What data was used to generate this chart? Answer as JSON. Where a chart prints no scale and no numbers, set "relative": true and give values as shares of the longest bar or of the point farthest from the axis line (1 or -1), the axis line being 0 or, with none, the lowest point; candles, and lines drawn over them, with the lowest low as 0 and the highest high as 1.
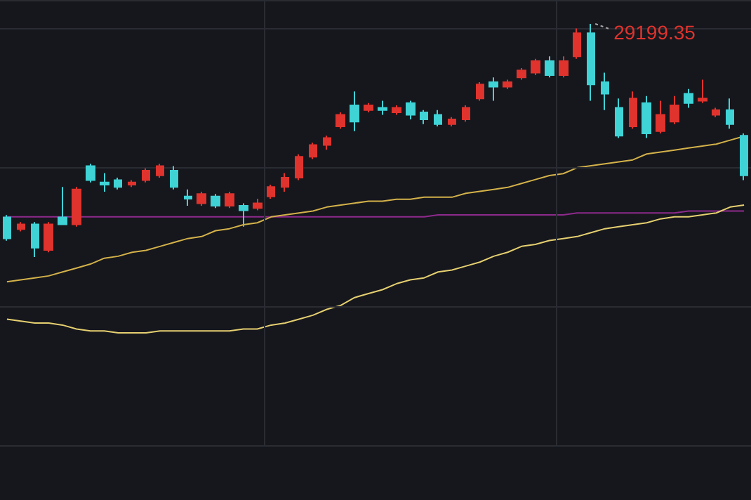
{
  "chart_data": [
    {
      "type": "line",
      "relative": true,
      "categories": [
        null,
        null,
        null,
        null,
        null,
        null,
        null,
        null,
        null,
        null,
        null,
        null,
        null,
        null,
        null,
        null,
        null,
        null,
        null,
        null,
        null,
        null,
        null,
        null,
        null,
        null,
        null,
        null,
        null,
        null,
        null,
        null,
        null,
        null,
        null,
        null,
        null,
        null,
        null,
        null,
        null,
        null,
        null,
        null,
        null,
        null,
        null,
        null,
        null,
        null,
        null,
        null,
        null,
        null
      ],
      "series": [
        {
          "color": "#8e2a8c",
          "values": [
            0.59,
            0.59,
            0.59,
            0.59,
            0.59,
            0.59,
            0.59,
            0.59,
            0.59,
            0.59,
            0.59,
            0.59,
            0.59,
            0.59,
            0.59,
            0.59,
            0.59,
            0.59,
            0.59,
            0.59,
            0.59,
            0.59,
            0.59,
            0.59,
            0.59,
            0.59,
            0.59,
            0.59,
            0.59,
            0.59,
            0.59,
            0.6,
            0.6,
            0.6,
            0.6,
            0.6,
            0.6,
            0.6,
            0.6,
            0.6,
            0.6,
            0.61,
            0.61,
            0.61,
            0.61,
            0.61,
            0.61,
            0.61,
            0.61,
            0.62,
            0.62,
            0.62,
            0.62,
            0.62
          ]
        },
        {
          "color": "#d4b24a",
          "values": [
            0.26,
            0.27,
            0.28,
            0.29,
            0.31,
            0.33,
            0.35,
            0.38,
            0.39,
            0.41,
            0.42,
            0.44,
            0.46,
            0.48,
            0.49,
            0.52,
            0.53,
            0.55,
            0.56,
            0.59,
            0.6,
            0.61,
            0.62,
            0.64,
            0.65,
            0.66,
            0.67,
            0.67,
            0.68,
            0.68,
            0.69,
            0.69,
            0.69,
            0.71,
            0.72,
            0.73,
            0.74,
            0.76,
            0.78,
            0.8,
            0.81,
            0.84,
            0.85,
            0.86,
            0.87,
            0.88,
            0.91,
            0.92,
            0.93,
            0.94,
            0.95,
            0.96,
            0.98,
            1
          ]
        },
        {
          "color": "#e6d070",
          "values": [
            0.07,
            0.06,
            0.05,
            0.05,
            0.04,
            0.02,
            0.01,
            0.01,
            0,
            0,
            0,
            0.01,
            0.01,
            0.01,
            0.01,
            0.01,
            0.01,
            0.02,
            0.02,
            0.04,
            0.05,
            0.07,
            0.09,
            0.12,
            0.14,
            0.18,
            0.2,
            0.22,
            0.25,
            0.27,
            0.28,
            0.31,
            0.32,
            0.34,
            0.36,
            0.39,
            0.41,
            0.44,
            0.45,
            0.47,
            0.48,
            0.49,
            0.51,
            0.53,
            0.54,
            0.55,
            0.56,
            0.58,
            0.59,
            0.59,
            0.6,
            0.61,
            0.64,
            0.65
          ]
        }
      ]
    },
    {
      "type": "candlestick",
      "relative": true,
      "grid": true,
      "categories": [
        null,
        null,
        null,
        null,
        null,
        null,
        null,
        null,
        null,
        null,
        null,
        null,
        null,
        null,
        null,
        null,
        null,
        null,
        null,
        null,
        null,
        null,
        null,
        null,
        null,
        null,
        null,
        null,
        null,
        null,
        null,
        null,
        null,
        null,
        null,
        null,
        null,
        null,
        null,
        null,
        null,
        null,
        null,
        null,
        null,
        null,
        null,
        null,
        null,
        null,
        null,
        null,
        null,
        null
      ],
      "annotations": [
        "29199.35"
      ],
      "colors": [
        "#3fd3d6",
        "#e0332d",
        "#3fd3d6",
        "#e0332d",
        "#3fd3d6",
        "#e0332d",
        "#3fd3d6",
        "#3fd3d6",
        "#3fd3d6",
        "#e0332d",
        "#e0332d",
        "#e0332d",
        "#3fd3d6",
        "#3fd3d6",
        "#e0332d",
        "#3fd3d6",
        "#e0332d",
        "#3fd3d6",
        "#e0332d",
        "#e0332d",
        "#e0332d",
        "#e0332d",
        "#e0332d",
        "#e0332d",
        "#e0332d",
        "#3fd3d6",
        "#e0332d",
        "#3fd3d6",
        "#e0332d",
        "#3fd3d6",
        "#3fd3d6",
        "#3fd3d6",
        "#e0332d",
        "#e0332d",
        "#e0332d",
        "#3fd3d6",
        "#e0332d",
        "#e0332d",
        "#e0332d",
        "#3fd3d6",
        "#e0332d",
        "#e0332d",
        "#3fd3d6",
        "#3fd3d6",
        "#3fd3d6",
        "#e0332d",
        "#3fd3d6",
        "#e0332d",
        "#e0332d",
        "#3fd3d6",
        "#e0332d",
        "#e0332d",
        "#3fd3d6",
        "#3fd3d6"
      ],
      "ohlc": [
        [
          0.17,
          0.18,
          0.07,
          0.08
        ],
        [
          0.12,
          0.15,
          0.11,
          0.14
        ],
        [
          0.14,
          0.15,
          0,
          0.04
        ],
        [
          0.03,
          0.15,
          0.02,
          0.14
        ],
        [
          0.17,
          0.3,
          0.14,
          0.14
        ],
        [
          0.14,
          0.3,
          0.13,
          0.29
        ],
        [
          0.39,
          0.4,
          0.32,
          0.33
        ],
        [
          0.32,
          0.36,
          0.28,
          0.31
        ],
        [
          0.33,
          0.34,
          0.29,
          0.3
        ],
        [
          0.31,
          0.33,
          0.3,
          0.32
        ],
        [
          0.33,
          0.38,
          0.32,
          0.37
        ],
        [
          0.35,
          0.4,
          0.34,
          0.39
        ],
        [
          0.37,
          0.39,
          0.29,
          0.3
        ],
        [
          0.26,
          0.29,
          0.22,
          0.25
        ],
        [
          0.23,
          0.28,
          0.22,
          0.27
        ],
        [
          0.26,
          0.27,
          0.21,
          0.22
        ],
        [
          0.22,
          0.28,
          0.21,
          0.27
        ],
        [
          0.22,
          0.23,
          0.13,
          0.2
        ],
        [
          0.21,
          0.25,
          0.2,
          0.23
        ],
        [
          0.26,
          0.31,
          0.25,
          0.3
        ],
        [
          0.3,
          0.36,
          0.28,
          0.34
        ],
        [
          0.34,
          0.44,
          0.33,
          0.43
        ],
        [
          0.43,
          0.49,
          0.42,
          0.48
        ],
        [
          0.48,
          0.52,
          0.46,
          0.51
        ],
        [
          0.56,
          0.62,
          0.55,
          0.61
        ],
        [
          0.65,
          0.71,
          0.54,
          0.58
        ],
        [
          0.63,
          0.66,
          0.62,
          0.65
        ],
        [
          0.64,
          0.67,
          0.61,
          0.63
        ],
        [
          0.62,
          0.65,
          0.61,
          0.64
        ],
        [
          0.66,
          0.67,
          0.59,
          0.61
        ],
        [
          0.62,
          0.63,
          0.57,
          0.59
        ],
        [
          0.61,
          0.63,
          0.56,
          0.57
        ],
        [
          0.57,
          0.6,
          0.56,
          0.59
        ],
        [
          0.59,
          0.65,
          0.58,
          0.64
        ],
        [
          0.68,
          0.75,
          0.67,
          0.74
        ],
        [
          0.75,
          0.77,
          0.67,
          0.73
        ],
        [
          0.73,
          0.76,
          0.72,
          0.75
        ],
        [
          0.77,
          0.81,
          0.76,
          0.8
        ],
        [
          0.79,
          0.85,
          0.78,
          0.84
        ],
        [
          0.84,
          0.86,
          0.77,
          0.78
        ],
        [
          0.78,
          0.86,
          0.77,
          0.84
        ],
        [
          0.86,
          0.98,
          0.85,
          0.96
        ],
        [
          0.96,
          1,
          0.67,
          0.74
        ],
        [
          0.75,
          0.79,
          0.63,
          0.7
        ],
        [
          0.64,
          0.68,
          0.51,
          0.52
        ],
        [
          0.56,
          0.71,
          0.55,
          0.68
        ],
        [
          0.66,
          0.69,
          0.51,
          0.53
        ],
        [
          0.54,
          0.67,
          0.53,
          0.61
        ],
        [
          0.58,
          0.69,
          0.57,
          0.65
        ],
        [
          0.7,
          0.72,
          0.64,
          0.66
        ],
        [
          0.67,
          0.76,
          0.66,
          0.68
        ],
        [
          0.61,
          0.64,
          0.6,
          0.63
        ],
        [
          0.63,
          0.68,
          0.55,
          0.57
        ],
        [
          0.52,
          0.53,
          0.33,
          0.35
        ]
      ]
    }
  ]
}
